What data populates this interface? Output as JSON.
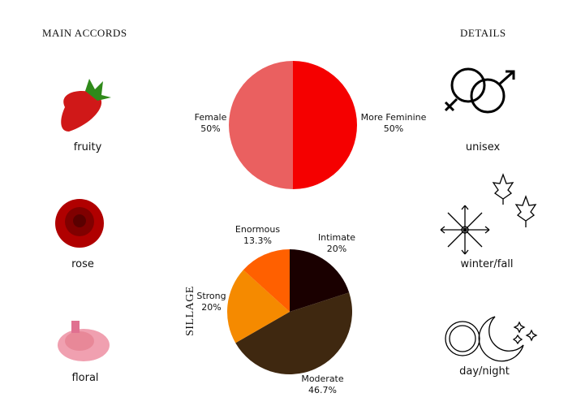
{
  "headings": {
    "accords": "MAIN ACCORDS",
    "details": "DETAILS"
  },
  "accords": [
    {
      "label": "fruity",
      "icon": "strawberry-image"
    },
    {
      "label": "rose",
      "icon": "rose-image"
    },
    {
      "label": "floral",
      "icon": "carnation-image"
    }
  ],
  "details": [
    {
      "label": "unisex",
      "icon": "gender-symbols-icon"
    },
    {
      "label": "winter/fall",
      "icon": "snowflake-maple-leaves-icon"
    },
    {
      "label": "day/night",
      "icon": "sun-moon-icon"
    }
  ],
  "chart_data": [
    {
      "type": "pie",
      "slices": [
        {
          "name": "More Feminine",
          "value": 50,
          "label": "50%",
          "color": "#f50000"
        },
        {
          "name": "Female",
          "value": 50,
          "label": "50%",
          "color": "#ea6060"
        }
      ]
    },
    {
      "type": "pie",
      "ylabel": "SILLAGE",
      "slices": [
        {
          "name": "Intimate",
          "value": 20,
          "label": "20%",
          "color": "#1a0000"
        },
        {
          "name": "Moderate",
          "value": 46.7,
          "label": "46.7%",
          "color": "#3f2810"
        },
        {
          "name": "Strong",
          "value": 20,
          "label": "20%",
          "color": "#f58a00"
        },
        {
          "name": "Enormous",
          "value": 13.3,
          "label": "13.3%",
          "color": "#ff6000"
        }
      ]
    }
  ]
}
